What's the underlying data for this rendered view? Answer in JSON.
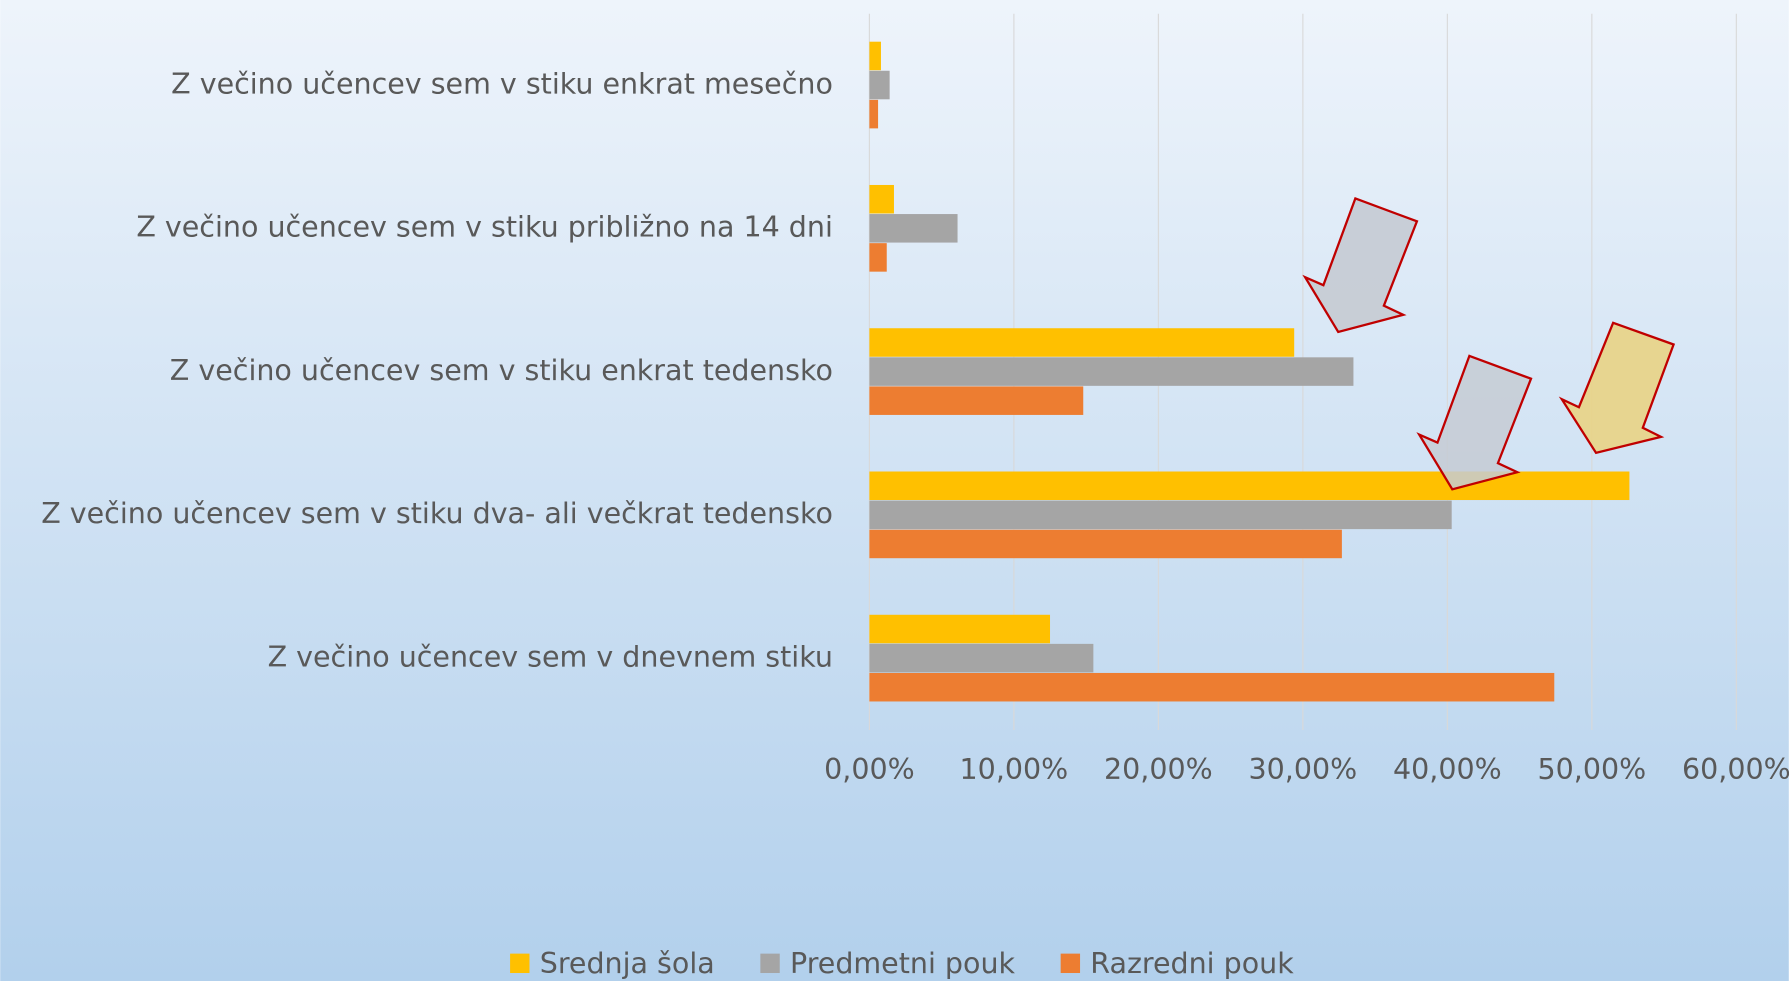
{
  "chart_data": {
    "type": "barh",
    "categories": [
      "Z večino učencev sem v stiku enkrat mesečno",
      "Z večino učencev sem v stiku približno na 14 dni",
      "Z večino učencev sem v stiku enkrat tedensko",
      "Z večino učencev sem v stiku dva- ali večkrat tedensko",
      "Z večino učencev sem v dnevnem stiku"
    ],
    "series": [
      {
        "name": "Srednja šola",
        "color": "#ffc000",
        "values": [
          0.8,
          1.7,
          29.4,
          52.6,
          12.5
        ]
      },
      {
        "name": "Predmetni pouk",
        "color": "#a5a5a5",
        "values": [
          1.4,
          6.1,
          33.5,
          40.3,
          15.5
        ]
      },
      {
        "name": "Razredni pouk",
        "color": "#ed7d31",
        "values": [
          0.6,
          1.2,
          14.8,
          32.7,
          47.4
        ]
      }
    ],
    "xlim": [
      0,
      60
    ],
    "xticks": [
      {
        "value": 0,
        "label": "0,00%"
      },
      {
        "value": 10,
        "label": "10,00%"
      },
      {
        "value": 20,
        "label": "20,00%"
      },
      {
        "value": 30,
        "label": "30,00%"
      },
      {
        "value": 40,
        "label": "40,00%"
      },
      {
        "value": 50,
        "label": "50,00%"
      },
      {
        "value": 60,
        "label": "60,00%"
      }
    ],
    "grid": true,
    "legend": "bottom"
  }
}
